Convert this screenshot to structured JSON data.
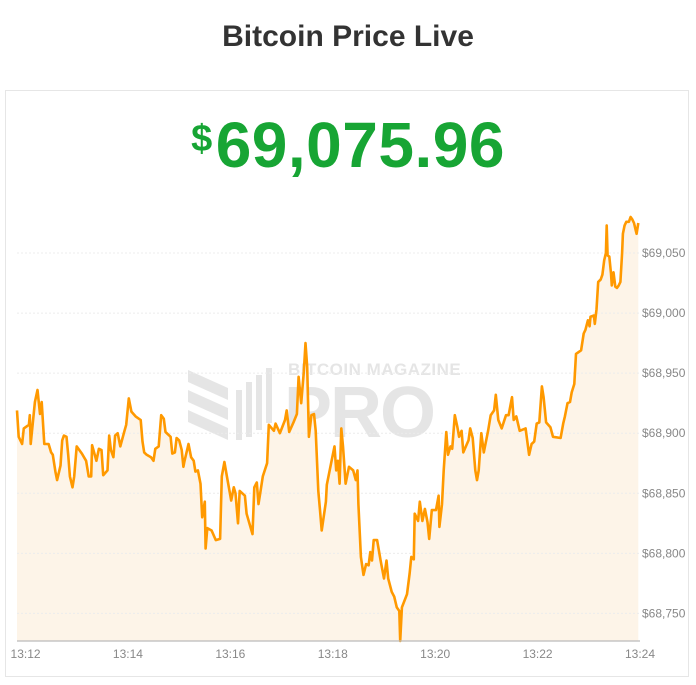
{
  "header": {
    "title": "Bitcoin Price Live"
  },
  "price": {
    "currency_symbol": "$",
    "value": "69,075.96",
    "color": "#17a534"
  },
  "watermark": {
    "line1": "BITCOIN MAGAZINE",
    "line2": "PRO"
  },
  "chart_data": {
    "type": "area",
    "title": "",
    "xlabel": "",
    "ylabel": "",
    "line_color": "#ff9900",
    "fill_color": "#fdf4e8",
    "grid": "horizontal",
    "xlim": [
      "13:11:50",
      "13:24:00"
    ],
    "ylim": [
      68727,
      69090
    ],
    "y_axis_side": "right",
    "x_ticks": [
      "13:12",
      "13:14",
      "13:16",
      "13:18",
      "13:20",
      "13:22",
      "13:24"
    ],
    "y_ticks": [
      {
        "value": 68750,
        "label": "$68,750"
      },
      {
        "value": 68800,
        "label": "$68,800"
      },
      {
        "value": 68850,
        "label": "$68,850"
      },
      {
        "value": 68900,
        "label": "$68,900"
      },
      {
        "value": 68950,
        "label": "$68,950"
      },
      {
        "value": 69000,
        "label": "$69,000"
      },
      {
        "value": 69050,
        "label": "$69,050"
      }
    ],
    "points": [
      [
        "13:11:50",
        68919
      ],
      [
        "13:11:52",
        68897
      ],
      [
        "13:11:56",
        68891
      ],
      [
        "13:11:58",
        68904
      ],
      [
        "13:12:04",
        68907
      ],
      [
        "13:12:05",
        68915
      ],
      [
        "13:12:06",
        68891
      ],
      [
        "13:12:11",
        68926
      ],
      [
        "13:12:14",
        68936
      ],
      [
        "13:12:17",
        68916
      ],
      [
        "13:12:19",
        68926
      ],
      [
        "13:12:22",
        68891
      ],
      [
        "13:12:27",
        68891
      ],
      [
        "13:12:30",
        68884
      ],
      [
        "13:12:32",
        68882
      ],
      [
        "13:12:35",
        68868
      ],
      [
        "13:12:37",
        68861
      ],
      [
        "13:12:41",
        68873
      ],
      [
        "13:12:43",
        68894
      ],
      [
        "13:12:45",
        68898
      ],
      [
        "13:12:48",
        68897
      ],
      [
        "13:12:50",
        68882
      ],
      [
        "13:12:52",
        68864
      ],
      [
        "13:12:55",
        68855
      ],
      [
        "13:12:57",
        68864
      ],
      [
        "13:13:00",
        68889
      ],
      [
        "13:13:06",
        68883
      ],
      [
        "13:13:11",
        68877
      ],
      [
        "13:13:14",
        68864
      ],
      [
        "13:13:17",
        68864
      ],
      [
        "13:13:18",
        68890
      ],
      [
        "13:13:23",
        68877
      ],
      [
        "13:13:26",
        68887
      ],
      [
        "13:13:29",
        68886
      ],
      [
        "13:13:31",
        68865
      ],
      [
        "13:13:36",
        68869
      ],
      [
        "13:13:38",
        68898
      ],
      [
        "13:13:40",
        68886
      ],
      [
        "13:13:43",
        68880
      ],
      [
        "13:13:45",
        68898
      ],
      [
        "13:13:48",
        68900
      ],
      [
        "13:13:51",
        68889
      ],
      [
        "13:13:56",
        68902
      ],
      [
        "13:13:58",
        68907
      ],
      [
        "13:14:01",
        68929
      ],
      [
        "13:14:04",
        68918
      ],
      [
        "13:14:09",
        68914
      ],
      [
        "13:14:15",
        68911
      ],
      [
        "13:14:17",
        68893
      ],
      [
        "13:14:19",
        68884
      ],
      [
        "13:14:22",
        68882
      ],
      [
        "13:14:27",
        68880
      ],
      [
        "13:14:30",
        68877
      ],
      [
        "13:14:32",
        68887
      ],
      [
        "13:14:36",
        68889
      ],
      [
        "13:14:39",
        68915
      ],
      [
        "13:14:42",
        68912
      ],
      [
        "13:14:44",
        68901
      ],
      [
        "13:14:50",
        68897
      ],
      [
        "13:14:52",
        68883
      ],
      [
        "13:14:55",
        68884
      ],
      [
        "13:14:57",
        68896
      ],
      [
        "13:15:00",
        68894
      ],
      [
        "13:15:03",
        68886
      ],
      [
        "13:15:05",
        68872
      ],
      [
        "13:15:06",
        68876
      ],
      [
        "13:15:11",
        68891
      ],
      [
        "13:15:14",
        68880
      ],
      [
        "13:15:17",
        68877
      ],
      [
        "13:15:19",
        68868
      ],
      [
        "13:15:22",
        68869
      ],
      [
        "13:15:25",
        68858
      ],
      [
        "13:15:27",
        68830
      ],
      [
        "13:15:30",
        68843
      ],
      [
        "13:15:31",
        68804
      ],
      [
        "13:15:33",
        68821
      ],
      [
        "13:15:38",
        68819
      ],
      [
        "13:15:43",
        68811
      ],
      [
        "13:15:48",
        68812
      ],
      [
        "13:15:50",
        68864
      ],
      [
        "13:15:53",
        68876
      ],
      [
        "13:15:56",
        68864
      ],
      [
        "13:16:01",
        68844
      ],
      [
        "13:16:04",
        68855
      ],
      [
        "13:16:06",
        68850
      ],
      [
        "13:16:09",
        68825
      ],
      [
        "13:16:11",
        68852
      ],
      [
        "13:16:17",
        68848
      ],
      [
        "13:16:19",
        68833
      ],
      [
        "13:16:26",
        68816
      ],
      [
        "13:16:28",
        68855
      ],
      [
        "13:16:31",
        68859
      ],
      [
        "13:16:33",
        68841
      ],
      [
        "13:16:35",
        68850
      ],
      [
        "13:16:38",
        68864
      ],
      [
        "13:16:43",
        68875
      ],
      [
        "13:16:45",
        68907
      ],
      [
        "13:16:51",
        68902
      ],
      [
        "13:16:53",
        68908
      ],
      [
        "13:16:58",
        68900
      ],
      [
        "13:17:04",
        68911
      ],
      [
        "13:17:06",
        68919
      ],
      [
        "13:17:09",
        68901
      ],
      [
        "13:17:14",
        68909
      ],
      [
        "13:17:18",
        68916
      ],
      [
        "13:17:20",
        68947
      ],
      [
        "13:17:23",
        68925
      ],
      [
        "13:17:26",
        68951
      ],
      [
        "13:17:28",
        68975
      ],
      [
        "13:17:30",
        68955
      ],
      [
        "13:17:32",
        68897
      ],
      [
        "13:17:35",
        68915
      ],
      [
        "13:17:38",
        68916
      ],
      [
        "13:17:40",
        68902
      ],
      [
        "13:17:43",
        68852
      ],
      [
        "13:17:45",
        68836
      ],
      [
        "13:17:47",
        68819
      ],
      [
        "13:17:52",
        68843
      ],
      [
        "13:17:53",
        68857
      ],
      [
        "13:17:58",
        68875
      ],
      [
        "13:18:02",
        68889
      ],
      [
        "13:18:04",
        68869
      ],
      [
        "13:18:06",
        68877
      ],
      [
        "13:18:08",
        68858
      ],
      [
        "13:18:10",
        68904
      ],
      [
        "13:18:12",
        68889
      ],
      [
        "13:18:15",
        68858
      ],
      [
        "13:18:19",
        68872
      ],
      [
        "13:18:24",
        68869
      ],
      [
        "13:18:27",
        68861
      ],
      [
        "13:18:29",
        68869
      ],
      [
        "13:18:30",
        68841
      ],
      [
        "13:18:33",
        68797
      ],
      [
        "13:18:36",
        68782
      ],
      [
        "13:18:39",
        68791
      ],
      [
        "13:18:42",
        68790
      ],
      [
        "13:18:44",
        68801
      ],
      [
        "13:18:46",
        68794
      ],
      [
        "13:18:48",
        68811
      ],
      [
        "13:18:52",
        68811
      ],
      [
        "13:18:56",
        68794
      ],
      [
        "13:19:00",
        68779
      ],
      [
        "13:19:03",
        68794
      ],
      [
        "13:19:05",
        68779
      ],
      [
        "13:19:09",
        68768
      ],
      [
        "13:19:12",
        68764
      ],
      [
        "13:19:15",
        68755
      ],
      [
        "13:19:18",
        68752
      ],
      [
        "13:19:19",
        68727
      ],
      [
        "13:19:21",
        68755
      ],
      [
        "13:19:27",
        68766
      ],
      [
        "13:19:30",
        68783
      ],
      [
        "13:19:32",
        68797
      ],
      [
        "13:19:35",
        68795
      ],
      [
        "13:19:36",
        68833
      ],
      [
        "13:19:40",
        68827
      ],
      [
        "13:19:42",
        68843
      ],
      [
        "13:19:45",
        68827
      ],
      [
        "13:19:48",
        68837
      ],
      [
        "13:19:51",
        68826
      ],
      [
        "13:19:53",
        68812
      ],
      [
        "13:19:56",
        68836
      ],
      [
        "13:20:01",
        68836
      ],
      [
        "13:20:04",
        68848
      ],
      [
        "13:20:05",
        68822
      ],
      [
        "13:20:08",
        68841
      ],
      [
        "13:20:10",
        68869
      ],
      [
        "13:20:13",
        68901
      ],
      [
        "13:20:15",
        68882
      ],
      [
        "13:20:18",
        68889
      ],
      [
        "13:20:20",
        68887
      ],
      [
        "13:20:23",
        68915
      ],
      [
        "13:20:26",
        68905
      ],
      [
        "13:20:28",
        68897
      ],
      [
        "13:20:31",
        68902
      ],
      [
        "13:20:33",
        68884
      ],
      [
        "13:20:39",
        68894
      ],
      [
        "13:20:41",
        68904
      ],
      [
        "13:20:44",
        68896
      ],
      [
        "13:20:47",
        68869
      ],
      [
        "13:20:49",
        68861
      ],
      [
        "13:20:51",
        68869
      ],
      [
        "13:20:54",
        68900
      ],
      [
        "13:20:57",
        68884
      ],
      [
        "13:21:02",
        68902
      ],
      [
        "13:21:05",
        68915
      ],
      [
        "13:21:09",
        68919
      ],
      [
        "13:21:11",
        68932
      ],
      [
        "13:21:14",
        68911
      ],
      [
        "13:21:18",
        68904
      ],
      [
        "13:21:23",
        68915
      ],
      [
        "13:21:26",
        68915
      ],
      [
        "13:21:30",
        68930
      ],
      [
        "13:21:32",
        68911
      ],
      [
        "13:21:35",
        68914
      ],
      [
        "13:21:39",
        68902
      ],
      [
        "13:21:46",
        68904
      ],
      [
        "13:21:50",
        68882
      ],
      [
        "13:21:53",
        68891
      ],
      [
        "13:21:56",
        68893
      ],
      [
        "13:21:59",
        68908
      ],
      [
        "13:22:02",
        68909
      ],
      [
        "13:22:05",
        68939
      ],
      [
        "13:22:07",
        68930
      ],
      [
        "13:22:10",
        68909
      ],
      [
        "13:22:15",
        68905
      ],
      [
        "13:22:18",
        68897
      ],
      [
        "13:22:27",
        68896
      ],
      [
        "13:22:30",
        68908
      ],
      [
        "13:22:32",
        68914
      ],
      [
        "13:22:35",
        68925
      ],
      [
        "13:22:38",
        68926
      ],
      [
        "13:22:40",
        68934
      ],
      [
        "13:22:43",
        68941
      ],
      [
        "13:22:45",
        68966
      ],
      [
        "13:22:51",
        68969
      ],
      [
        "13:22:54",
        68983
      ],
      [
        "13:22:56",
        68986
      ],
      [
        "13:22:59",
        68994
      ],
      [
        "13:23:01",
        68989
      ],
      [
        "13:23:02",
        68997
      ],
      [
        "13:23:06",
        68998
      ],
      [
        "13:23:07",
        68991
      ],
      [
        "13:23:09",
        69003
      ],
      [
        "13:23:11",
        69026
      ],
      [
        "13:23:14",
        69028
      ],
      [
        "13:23:16",
        69032
      ],
      [
        "13:23:18",
        69044
      ],
      [
        "13:23:20",
        69050
      ],
      [
        "13:23:21",
        69073
      ],
      [
        "13:23:22",
        69048
      ],
      [
        "13:23:24",
        69047
      ],
      [
        "13:23:26",
        69033
      ],
      [
        "13:23:27",
        69023
      ],
      [
        "13:23:29",
        69034
      ],
      [
        "13:23:31",
        69022
      ],
      [
        "13:23:33",
        69021
      ],
      [
        "13:23:35",
        69023
      ],
      [
        "13:23:37",
        69026
      ],
      [
        "13:23:39",
        69050
      ],
      [
        "13:23:40",
        69066
      ],
      [
        "13:23:42",
        69073
      ],
      [
        "13:23:44",
        69076
      ],
      [
        "13:23:47",
        69076
      ],
      [
        "13:23:49",
        69080
      ],
      [
        "13:23:51",
        69078
      ],
      [
        "13:23:53",
        69075
      ],
      [
        "13:23:55",
        69069
      ],
      [
        "13:23:56",
        69066
      ],
      [
        "13:23:58",
        69075
      ]
    ]
  }
}
